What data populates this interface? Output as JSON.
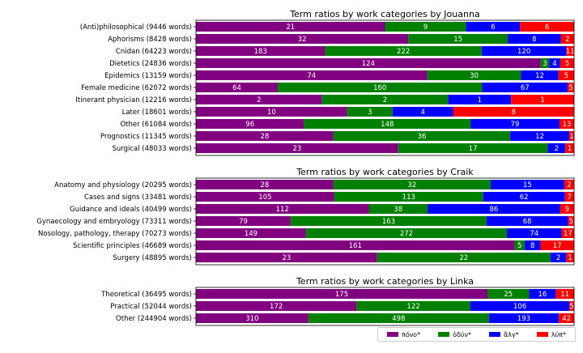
{
  "chart_data": [
    {
      "type": "bar",
      "stacked": "horizontal-normalized",
      "title": "Term ratios by work categories by Jouanna",
      "categories": [
        "(Anti)philosophical (9446 words)",
        "Aphorisms (8428 words)",
        "Cnidan (64223 words)",
        "Dietetics (24836 words)",
        "Epidemics (13159 words)",
        "Female medicine (62072 words)",
        "Itinerant physician (12216 words)",
        "Later (18601 words)",
        "Other (61084 words)",
        "Prognostics (11345 words)",
        "Surgical (48033 words)"
      ],
      "series": [
        {
          "name": "πόνο*",
          "values": [
            21,
            32,
            183,
            124,
            74,
            64,
            2,
            10,
            96,
            28,
            23
          ]
        },
        {
          "name": "ὀδύν*",
          "values": [
            9,
            15,
            222,
            3,
            30,
            160,
            2,
            3,
            148,
            36,
            17
          ]
        },
        {
          "name": "ἄλγ*",
          "values": [
            6,
            8,
            120,
            4,
            12,
            67,
            1,
            4,
            79,
            12,
            2
          ]
        },
        {
          "name": "λύπ*",
          "values": [
            6,
            2,
            11,
            5,
            5,
            5,
            1,
            8,
            13,
            1,
            1
          ]
        }
      ]
    },
    {
      "type": "bar",
      "stacked": "horizontal-normalized",
      "title": "Term ratios by work categories by Craik",
      "categories": [
        "Anatomy and physiology (20295 words)",
        "Cases and signs (33481 words)",
        "Guidance and ideals (40499 words)",
        "Gynaecology and embryology (73311 words)",
        "Nosology, pathology, therapy (70273 words)",
        "Scientific principles (46689 words)",
        "Surgery (48895 words)"
      ],
      "series": [
        {
          "name": "πόνο*",
          "values": [
            28,
            105,
            112,
            79,
            149,
            161,
            23
          ]
        },
        {
          "name": "ὀδύν*",
          "values": [
            32,
            113,
            38,
            163,
            272,
            5,
            22
          ]
        },
        {
          "name": "ἄλγ*",
          "values": [
            15,
            62,
            86,
            68,
            74,
            8,
            2
          ]
        },
        {
          "name": "λύπ*",
          "values": [
            2,
            7,
            9,
            5,
            17,
            17,
            1
          ]
        }
      ]
    },
    {
      "type": "bar",
      "stacked": "horizontal-normalized",
      "title": "Term ratios by work categories by Linka",
      "categories": [
        "Theoretical (36495 words)",
        "Practical (52044 words)",
        "Other (244904 words)"
      ],
      "series": [
        {
          "name": "πόνο*",
          "values": [
            175,
            172,
            310
          ]
        },
        {
          "name": "ὀδύν*",
          "values": [
            25,
            122,
            498
          ]
        },
        {
          "name": "ἄλγ*",
          "values": [
            16,
            106,
            193
          ]
        },
        {
          "name": "λύπ*",
          "values": [
            11,
            5,
            42
          ]
        }
      ]
    }
  ],
  "colors": {
    "series": [
      "#800080",
      "#008000",
      "#0000ff",
      "#ff0000"
    ],
    "bar_text": "#ffffff"
  },
  "legend": {
    "items": [
      {
        "label": "πόνο*",
        "color": "#800080"
      },
      {
        "label": "ὀδύν*",
        "color": "#008000"
      },
      {
        "label": "ἄλγ*",
        "color": "#0000ff"
      },
      {
        "label": "λύπ*",
        "color": "#ff0000"
      }
    ]
  }
}
